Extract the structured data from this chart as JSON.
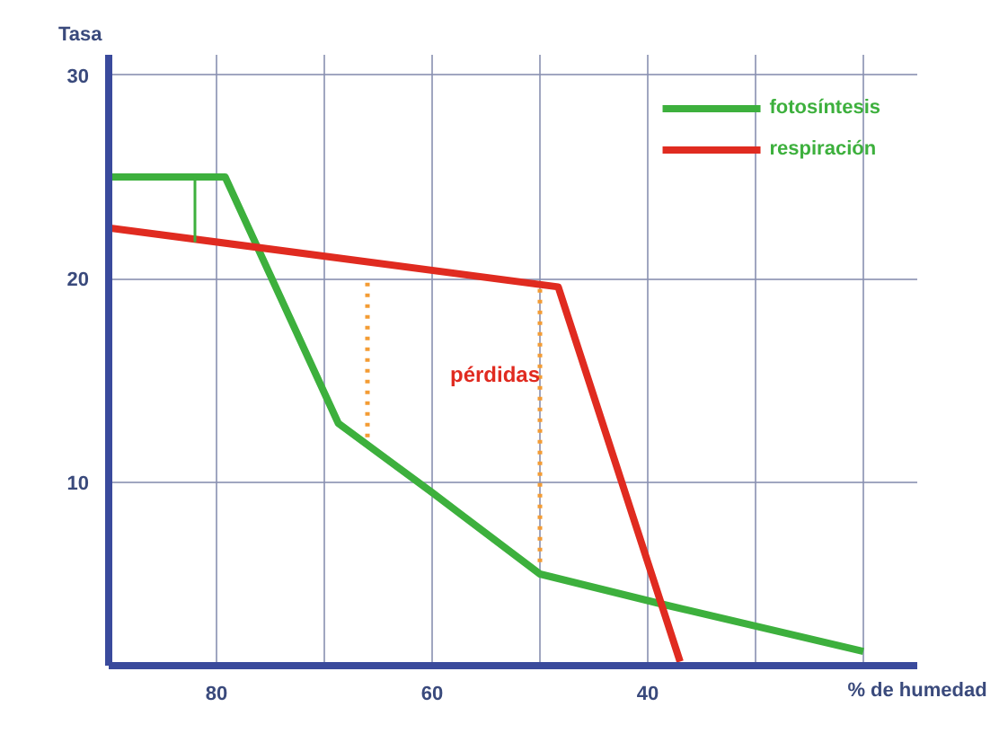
{
  "chart_data": {
    "type": "line",
    "xlabel": "% de humedad",
    "ylabel": "Tasa",
    "xlim": [
      90,
      15
    ],
    "ylim": [
      1,
      31
    ],
    "xticks": [
      {
        "value": 90,
        "label": null
      },
      80,
      {
        "value": 70,
        "label": null
      },
      60,
      {
        "value": 50,
        "label": null
      },
      40,
      {
        "value": 30,
        "label": null
      },
      {
        "value": 20,
        "label": null
      }
    ],
    "yticks": [
      10,
      20,
      30
    ],
    "grid": true,
    "legend": "top right",
    "marker": "none",
    "series": [
      {
        "name": "fotosíntesis",
        "color": "#3db03d",
        "x": [
          90,
          79.2,
          68.7,
          60,
          50,
          38.5,
          20
        ],
        "values": [
          25,
          25,
          12.9,
          9.5,
          5.5,
          4.0,
          1.7
        ]
      },
      {
        "name": "respiración",
        "color": "#e02b20",
        "x": [
          90,
          48.3,
          37
        ],
        "values": [
          22.5,
          19.6,
          1.2
        ]
      },
      {
        "color": "#3db03d",
        "x": [
          82,
          82
        ],
        "values": [
          25,
          21.8
        ]
      },
      {
        "color": "#f39c34",
        "line_style": "dotted",
        "x": [
          66,
          66
        ],
        "values": [
          19.8,
          12.2
        ]
      },
      {
        "color": "#f39c34",
        "line_style": "dotted",
        "x": [
          50,
          50
        ],
        "values": [
          19.5,
          5.8
        ]
      }
    ],
    "annotations": [
      "pérdidas"
    ]
  }
}
